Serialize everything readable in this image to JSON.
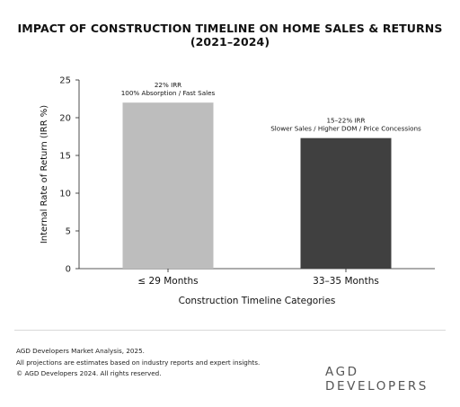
{
  "title": "IMPACT OF CONSTRUCTION TIMELINE ON HOME SALES & RETURNS (2021–2024)",
  "chart_data": {
    "type": "bar",
    "categories": [
      "≤ 29 Months",
      "33–35 Months"
    ],
    "values": [
      22,
      17.3
    ],
    "colors": [
      "#bdbdbd",
      "#404040"
    ],
    "xlabel": "Construction Timeline Categories",
    "ylabel": "Internal Rate of Return (IRR %)",
    "ylim": [
      0,
      25
    ],
    "yticks": [
      0,
      5,
      10,
      15,
      20,
      25
    ],
    "grid": false,
    "annotations": [
      {
        "line1": "22% IRR",
        "line2": "100% Absorption / Fast Sales"
      },
      {
        "line1": "15–22% IRR",
        "line2": "Slower Sales / Higher DOM / Price Concessions"
      }
    ]
  },
  "footer": {
    "line1": "AGD Developers Market Analysis, 2025.",
    "line2": "All projections are estimates based on industry reports and expert insights.",
    "line3": "© AGD Developers 2024. All rights reserved."
  },
  "logo_text": "AGD DEVELOPERS"
}
